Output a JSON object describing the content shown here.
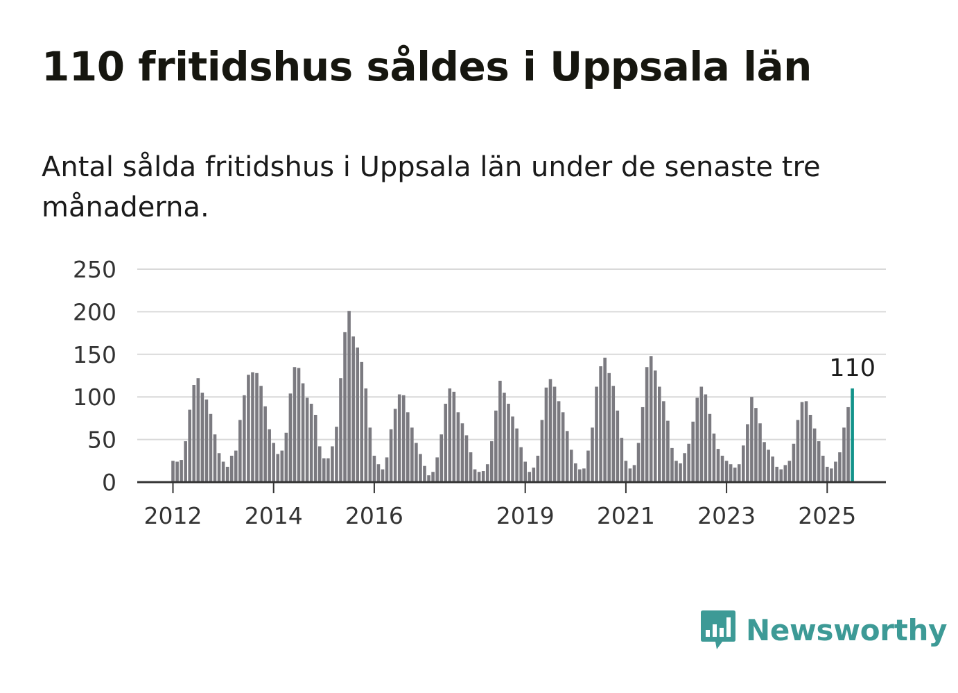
{
  "title": "110 fritidshus såldes i Uppsala län",
  "subtitle": "Antal sålda fritidshus i Uppsala län under de senaste tre månaderna.",
  "brand": {
    "name": "Newsworthy",
    "icon": "bar-chart-speech-bubble-icon",
    "color": "#3d9a96"
  },
  "colors": {
    "bar": "#7b7a80",
    "highlight": "#12938a",
    "grid": "#d9d9d9",
    "axis": "#333333"
  },
  "chart_data": {
    "type": "bar",
    "title": "",
    "xlabel": "",
    "ylabel": "",
    "ylim": [
      0,
      250
    ],
    "yticks": [
      "0",
      "50",
      "100",
      "150",
      "200",
      "250"
    ],
    "xticks": [
      {
        "label": "2012",
        "index": 0
      },
      {
        "label": "2014",
        "index": 24
      },
      {
        "label": "2016",
        "index": 48
      },
      {
        "label": "2019",
        "index": 84
      },
      {
        "label": "2021",
        "index": 108
      },
      {
        "label": "2023",
        "index": 132
      },
      {
        "label": "2025",
        "index": 156
      }
    ],
    "start": "2012-01",
    "highlight_label": "110",
    "values": [
      25,
      24,
      26,
      48,
      85,
      114,
      122,
      105,
      97,
      80,
      56,
      34,
      24,
      18,
      31,
      37,
      73,
      102,
      126,
      129,
      128,
      113,
      89,
      62,
      46,
      33,
      37,
      58,
      104,
      135,
      134,
      116,
      99,
      92,
      79,
      42,
      28,
      28,
      42,
      65,
      122,
      176,
      201,
      171,
      158,
      141,
      110,
      64,
      31,
      21,
      15,
      29,
      62,
      86,
      103,
      102,
      82,
      64,
      46,
      33,
      19,
      8,
      12,
      29,
      56,
      92,
      110,
      106,
      82,
      69,
      55,
      35,
      15,
      12,
      13,
      21,
      48,
      84,
      119,
      105,
      92,
      77,
      63,
      41,
      24,
      12,
      17,
      31,
      73,
      111,
      121,
      112,
      95,
      82,
      60,
      38,
      22,
      15,
      16,
      37,
      64,
      112,
      136,
      146,
      128,
      113,
      84,
      52,
      25,
      16,
      20,
      46,
      88,
      135,
      148,
      131,
      112,
      95,
      72,
      40,
      25,
      22,
      34,
      45,
      71,
      99,
      112,
      103,
      80,
      57,
      39,
      31,
      25,
      21,
      17,
      21,
      43,
      68,
      100,
      87,
      69,
      47,
      38,
      30,
      18,
      15,
      20,
      25,
      45,
      73,
      94,
      95,
      79,
      63,
      48,
      31,
      18,
      16,
      24,
      35,
      64,
      88,
      110
    ]
  }
}
